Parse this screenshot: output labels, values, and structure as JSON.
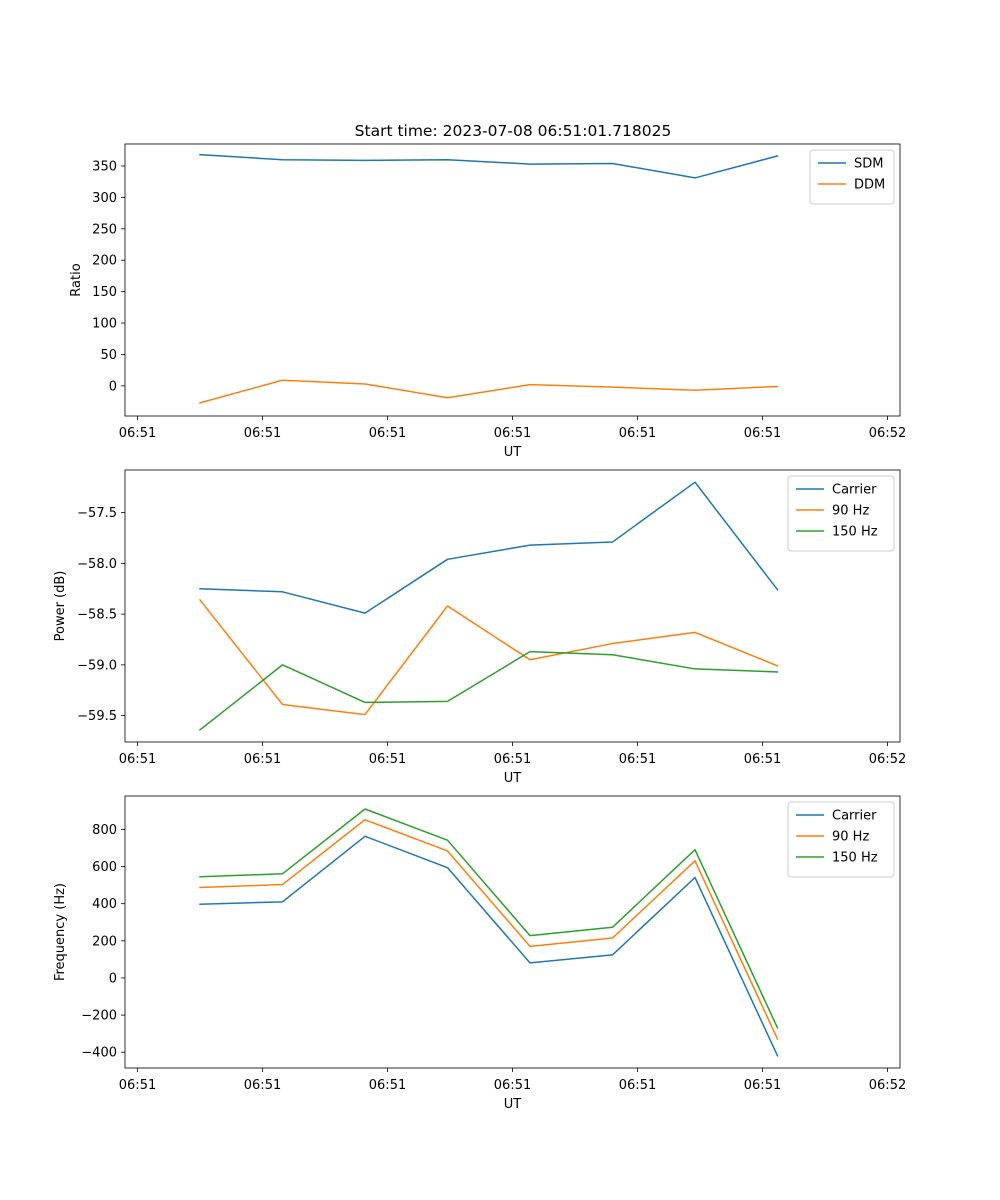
{
  "figure": {
    "title": "Start time: 2023-07-08 06:51:01.718025"
  },
  "chart_data": [
    {
      "type": "line",
      "xlabel": "UT",
      "ylabel": "Ratio",
      "xticks": [
        "06:51",
        "06:51",
        "06:51",
        "06:51",
        "06:51",
        "06:51",
        "06:52"
      ],
      "yticks": [
        "0",
        "50",
        "100",
        "150",
        "200",
        "250",
        "300",
        "350"
      ],
      "yticks_values": [
        0,
        50,
        100,
        150,
        200,
        250,
        300,
        350
      ],
      "ylim": [
        -48,
        385
      ],
      "xlim": [
        -0.6,
        5.6
      ],
      "x": [
        0,
        0.66,
        1.32,
        1.98,
        2.64,
        3.3,
        3.96,
        4.62
      ],
      "legend_loc": "upper right",
      "series": [
        {
          "name": "SDM",
          "color": "#1f77b4",
          "values": [
            368,
            360,
            359,
            360,
            353,
            354,
            331,
            366
          ]
        },
        {
          "name": "DDM",
          "color": "#ff7f0e",
          "values": [
            -27,
            9,
            3,
            -19,
            2,
            -2,
            -7,
            -1
          ]
        }
      ]
    },
    {
      "type": "line",
      "xlabel": "UT",
      "ylabel": "Power (dB)",
      "xticks": [
        "06:51",
        "06:51",
        "06:51",
        "06:51",
        "06:51",
        "06:51",
        "06:52"
      ],
      "yticks": [
        "−59.5",
        "−59.0",
        "−58.5",
        "−58.0",
        "−57.5"
      ],
      "yticks_values": [
        -59.5,
        -59.0,
        -58.5,
        -58.0,
        -57.5
      ],
      "ylim": [
        -59.76,
        -57.08
      ],
      "xlim": [
        -0.6,
        5.6
      ],
      "x": [
        0,
        0.66,
        1.32,
        1.98,
        2.64,
        3.3,
        3.96,
        4.62
      ],
      "legend_loc": "upper right",
      "series": [
        {
          "name": "Carrier",
          "color": "#1f77b4",
          "values": [
            -58.25,
            -58.28,
            -58.49,
            -57.96,
            -57.82,
            -57.79,
            -57.2,
            -58.26
          ]
        },
        {
          "name": "90 Hz",
          "color": "#ff7f0e",
          "values": [
            -58.36,
            -59.39,
            -59.49,
            -58.42,
            -58.95,
            -58.79,
            -58.68,
            -59.01
          ]
        },
        {
          "name": "150 Hz",
          "color": "#2ca02c",
          "values": [
            -59.64,
            -59.0,
            -59.37,
            -59.36,
            -58.87,
            -58.9,
            -59.04,
            -59.07
          ]
        }
      ]
    },
    {
      "type": "line",
      "xlabel": "UT",
      "ylabel": "Frequency (Hz)",
      "xticks": [
        "06:51",
        "06:51",
        "06:51",
        "06:51",
        "06:51",
        "06:51",
        "06:52"
      ],
      "yticks": [
        "−400",
        "−200",
        "0",
        "200",
        "400",
        "600",
        "800"
      ],
      "yticks_values": [
        -400,
        -200,
        0,
        200,
        400,
        600,
        800
      ],
      "ylim": [
        -485,
        980
      ],
      "xlim": [
        -0.6,
        5.6
      ],
      "x": [
        0,
        0.66,
        1.32,
        1.98,
        2.64,
        3.3,
        3.96,
        4.62
      ],
      "legend_loc": "upper right",
      "series": [
        {
          "name": "Carrier",
          "color": "#1f77b4",
          "values": [
            397,
            410,
            763,
            594,
            81,
            124,
            541,
            -419
          ]
        },
        {
          "name": "90 Hz",
          "color": "#ff7f0e",
          "values": [
            487,
            503,
            852,
            684,
            170,
            215,
            631,
            -329
          ]
        },
        {
          "name": "150 Hz",
          "color": "#2ca02c",
          "values": [
            545,
            561,
            910,
            742,
            228,
            273,
            691,
            -269
          ]
        }
      ]
    }
  ]
}
